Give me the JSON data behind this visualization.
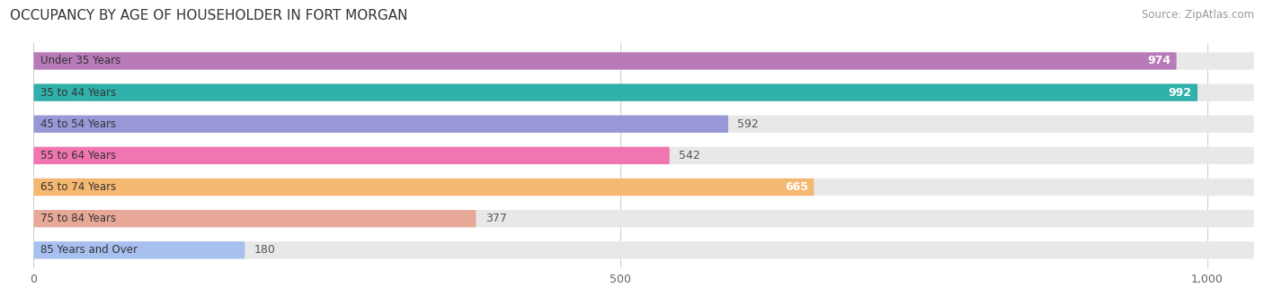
{
  "title": "OCCUPANCY BY AGE OF HOUSEHOLDER IN FORT MORGAN",
  "source": "Source: ZipAtlas.com",
  "categories": [
    "Under 35 Years",
    "35 to 44 Years",
    "45 to 54 Years",
    "55 to 64 Years",
    "65 to 74 Years",
    "75 to 84 Years",
    "85 Years and Over"
  ],
  "values": [
    974,
    992,
    592,
    542,
    665,
    377,
    180
  ],
  "bar_colors": [
    "#b87ab8",
    "#30b0aa",
    "#9898d8",
    "#f075b0",
    "#f5b870",
    "#e8a898",
    "#a8c0f0"
  ],
  "label_inside": [
    true,
    true,
    false,
    false,
    true,
    false,
    false
  ],
  "xlim_data": 1040,
  "xlim_display": [
    -20,
    1040
  ],
  "xticks": [
    0,
    500,
    1000
  ],
  "xticklabels": [
    "0",
    "500",
    "1,000"
  ],
  "track_color": "#e8e8e8",
  "title_color": "#333333",
  "source_color": "#999999",
  "label_color_inside": "#ffffff",
  "label_color_outside": "#555555",
  "cat_label_color": "#333333",
  "bar_height": 0.55,
  "bar_alpha": 1.0,
  "figsize": [
    14.06,
    3.4
  ],
  "dpi": 100
}
